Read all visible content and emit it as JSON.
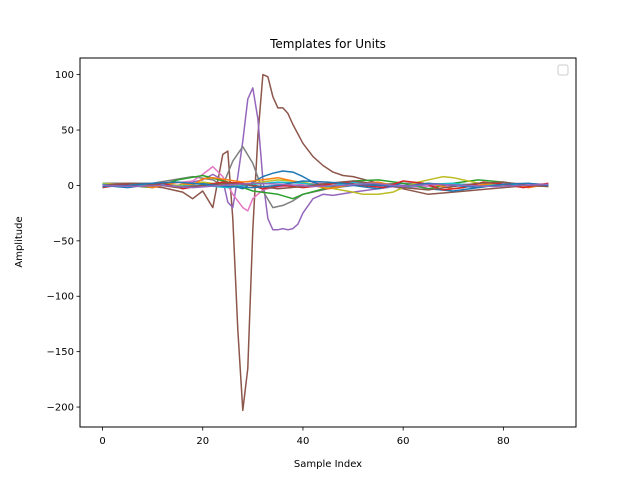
{
  "chart_data": {
    "type": "line",
    "title": "Templates for Units",
    "xlabel": "Sample Index",
    "ylabel": "Amplitude",
    "xlim": [
      -4.5,
      94.5
    ],
    "ylim": [
      -218,
      115
    ],
    "xticks": [
      0,
      20,
      40,
      60,
      80
    ],
    "yticks": [
      100,
      50,
      0,
      -50,
      -100,
      -150,
      -200
    ],
    "ytick_labels": [
      "100",
      "50",
      "0",
      "−50",
      "−100",
      "−150",
      "−200"
    ],
    "grid": false,
    "legend": "top-right (empty)",
    "series": [
      {
        "color": "#8c564b",
        "x": [
          0,
          4,
          8,
          12,
          16,
          18,
          20,
          22,
          24,
          25,
          26,
          27,
          28,
          29,
          30,
          31,
          32,
          33,
          34,
          35,
          36,
          37,
          38,
          40,
          42,
          44,
          46,
          48,
          50,
          55,
          60,
          65,
          70,
          75,
          80,
          85,
          89
        ],
        "y": [
          0,
          1,
          0,
          -2,
          -6,
          -12,
          -5,
          -20,
          28,
          31,
          -30,
          -130,
          -203,
          -165,
          -40,
          45,
          100,
          98,
          80,
          70,
          70,
          65,
          55,
          38,
          26,
          18,
          12,
          9,
          8,
          2,
          -3,
          -8,
          -6,
          -4,
          -2,
          0,
          0
        ]
      },
      {
        "color": "#9467bd",
        "x": [
          0,
          5,
          10,
          15,
          20,
          22,
          24,
          25,
          26,
          27,
          28,
          29,
          30,
          31,
          32,
          33,
          34,
          35,
          36,
          37,
          38,
          39,
          40,
          42,
          44,
          46,
          50,
          55,
          60,
          70,
          80,
          89
        ],
        "y": [
          1,
          0,
          2,
          0,
          5,
          10,
          5,
          -15,
          -20,
          8,
          40,
          78,
          88,
          60,
          5,
          -30,
          -40,
          -40,
          -39,
          -40,
          -39,
          -35,
          -25,
          -12,
          -8,
          -9,
          -6,
          -3,
          0,
          1,
          0,
          1
        ]
      },
      {
        "color": "#7f7f7f",
        "x": [
          0,
          10,
          18,
          22,
          24,
          26,
          28,
          30,
          32,
          34,
          36,
          38,
          40,
          45,
          50,
          60,
          70,
          80,
          89
        ],
        "y": [
          2,
          2,
          8,
          5,
          0,
          22,
          35,
          20,
          -5,
          -20,
          -18,
          -14,
          -8,
          -3,
          0,
          2,
          1,
          0,
          1
        ]
      },
      {
        "color": "#e377c2",
        "x": [
          0,
          10,
          18,
          20,
          22,
          24,
          26,
          28,
          29,
          30,
          32,
          34,
          38,
          42,
          50,
          60,
          70,
          80,
          89
        ],
        "y": [
          -1,
          0,
          4,
          10,
          17,
          8,
          -8,
          -20,
          -23,
          -12,
          -4,
          -2,
          0,
          2,
          1,
          -2,
          0,
          2,
          1
        ]
      },
      {
        "color": "#1f77b4",
        "x": [
          0,
          5,
          10,
          15,
          20,
          25,
          28,
          30,
          32,
          34,
          36,
          38,
          40,
          42,
          45,
          50,
          55,
          60,
          65,
          70,
          75,
          80,
          85,
          89
        ],
        "y": [
          0,
          -2,
          1,
          0,
          2,
          1,
          -3,
          3,
          8,
          11,
          13,
          12,
          8,
          3,
          -2,
          0,
          -3,
          2,
          -3,
          -5,
          -2,
          3,
          -1,
          0
        ]
      },
      {
        "color": "#2ca02c",
        "x": [
          0,
          5,
          10,
          15,
          20,
          25,
          30,
          35,
          38,
          40,
          45,
          50,
          55,
          60,
          65,
          70,
          75,
          80,
          85,
          89
        ],
        "y": [
          1,
          0,
          -2,
          5,
          9,
          3,
          -5,
          -8,
          -12,
          -8,
          -2,
          4,
          5,
          2,
          -3,
          2,
          5,
          3,
          0,
          -1
        ]
      },
      {
        "color": "#bcbd22",
        "x": [
          0,
          5,
          10,
          15,
          20,
          25,
          30,
          35,
          40,
          45,
          50,
          52,
          55,
          58,
          60,
          63,
          66,
          68,
          70,
          73,
          76,
          80,
          85,
          89
        ],
        "y": [
          2,
          0,
          1,
          0,
          3,
          0,
          2,
          5,
          3,
          -2,
          -6,
          -8,
          -8,
          -6,
          -2,
          3,
          6,
          8,
          7,
          4,
          1,
          0,
          -1,
          0
        ]
      },
      {
        "color": "#ff7f0e",
        "x": [
          0,
          5,
          10,
          15,
          18,
          20,
          22,
          25,
          28,
          30,
          35,
          40,
          45,
          50,
          55,
          60,
          65,
          70,
          75,
          80,
          85,
          89
        ],
        "y": [
          0,
          2,
          -2,
          3,
          0,
          6,
          7,
          5,
          3,
          4,
          7,
          2,
          -3,
          1,
          3,
          -2,
          2,
          -3,
          0,
          3,
          -2,
          1
        ]
      },
      {
        "color": "#17becf",
        "x": [
          0,
          5,
          10,
          15,
          20,
          25,
          30,
          35,
          40,
          45,
          50,
          55,
          60,
          65,
          70,
          75,
          80,
          85,
          89
        ],
        "y": [
          1,
          -1,
          2,
          -1,
          0,
          -2,
          1,
          3,
          2,
          -1,
          3,
          1,
          -2,
          1,
          2,
          -1,
          1,
          0,
          0
        ]
      },
      {
        "color": "#d62728",
        "x": [
          0,
          4,
          8,
          12,
          16,
          20,
          24,
          28,
          32,
          36,
          40,
          44,
          48,
          52,
          56,
          60,
          64,
          68,
          72,
          76,
          80,
          84,
          89
        ],
        "y": [
          -2,
          1,
          -1,
          2,
          -3,
          0,
          3,
          2,
          -3,
          0,
          -2,
          0,
          3,
          0,
          -2,
          4,
          2,
          -4,
          -2,
          3,
          1,
          -2,
          2
        ]
      },
      {
        "color": "#8c564b",
        "x": [
          0,
          5,
          10,
          15,
          20,
          25,
          30,
          35,
          40,
          45,
          50,
          55,
          60,
          65,
          70,
          75,
          80,
          85,
          89
        ],
        "y": [
          0,
          2,
          1,
          -2,
          0,
          2,
          0,
          -3,
          -1,
          2,
          4,
          1,
          -2,
          -4,
          -1,
          2,
          3,
          0,
          -1
        ]
      },
      {
        "color": "#1f77b4",
        "x": [
          0,
          5,
          10,
          15,
          20,
          25,
          30,
          35,
          40,
          45,
          50,
          55,
          60,
          65,
          70,
          75,
          80,
          85,
          89
        ],
        "y": [
          -1,
          0,
          2,
          3,
          1,
          -1,
          -2,
          0,
          4,
          3,
          1,
          0,
          -1,
          2,
          0,
          -2,
          1,
          2,
          0
        ]
      },
      {
        "color": "#9467bd",
        "x": [
          0,
          6,
          12,
          18,
          24,
          30,
          36,
          42,
          48,
          54,
          60,
          66,
          72,
          78,
          84,
          89
        ],
        "y": [
          0,
          -1,
          0,
          -2,
          0,
          2,
          1,
          -1,
          0,
          2,
          -1,
          1,
          0,
          -1,
          0,
          1
        ]
      }
    ]
  }
}
